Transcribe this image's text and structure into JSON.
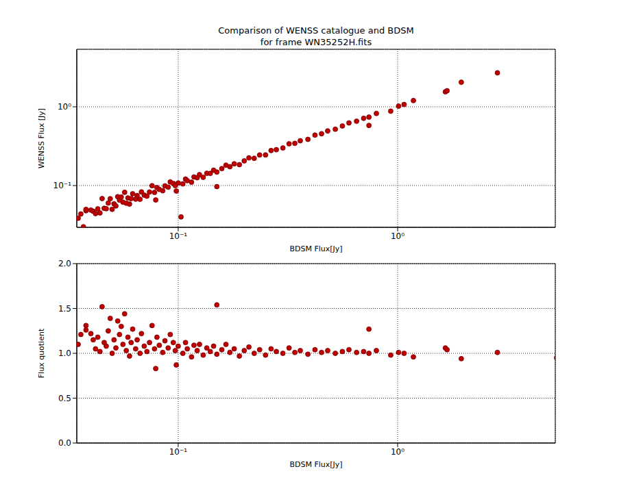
{
  "chart_data": [
    {
      "type": "scatter",
      "title": "Comparison of WENSS catalogue and BDSM\nfor frame WN35252H.fits",
      "x_label": "BDSM Flux[Jy]",
      "y_label": "WENSS Flux [Jy]",
      "log": true,
      "grid": true,
      "color": "#c00000",
      "marker": "circle",
      "xlim": [
        0.0345,
        5.23
      ],
      "ylim": [
        0.0295,
        5.37
      ],
      "xticks": [
        {
          "value": 0.1,
          "label": "10⁻¹"
        },
        {
          "value": 1,
          "label": "10⁰"
        }
      ],
      "yticks": [
        {
          "value": 0.1,
          "label": "10⁻¹"
        },
        {
          "value": 1,
          "label": "10⁰"
        }
      ],
      "x": [
        0.035,
        0.036,
        0.038,
        0.038,
        0.04,
        0.041,
        0.042,
        0.043,
        0.044,
        0.045,
        0.046,
        0.047,
        0.048,
        0.049,
        0.05,
        0.051,
        0.052,
        0.053,
        0.054,
        0.055,
        0.056,
        0.057,
        0.058,
        0.059,
        0.06,
        0.061,
        0.062,
        0.064,
        0.065,
        0.067,
        0.068,
        0.07,
        0.072,
        0.074,
        0.076,
        0.078,
        0.079,
        0.08,
        0.082,
        0.085,
        0.087,
        0.09,
        0.092,
        0.095,
        0.097,
        0.098,
        0.1,
        0.105,
        0.108,
        0.11,
        0.115,
        0.118,
        0.122,
        0.125,
        0.13,
        0.135,
        0.14,
        0.145,
        0.15,
        0.158,
        0.165,
        0.172,
        0.18,
        0.19,
        0.2,
        0.21,
        0.222,
        0.235,
        0.25,
        0.265,
        0.28,
        0.3,
        0.32,
        0.34,
        0.36,
        0.39,
        0.42,
        0.45,
        0.48,
        0.52,
        0.56,
        0.6,
        0.65,
        0.7,
        0.74,
        0.8,
        0.93,
        1.01,
        1.07,
        1.18,
        1.65,
        1.68,
        1.95,
        2.85,
        0.103,
        0.15,
        0.74,
        0.037
      ],
      "values": [
        0.0385,
        0.0436,
        0.0479,
        0.0498,
        0.0488,
        0.0472,
        0.0441,
        0.0507,
        0.0449,
        0.0684,
        0.0515,
        0.0508,
        0.06,
        0.0681,
        0.05,
        0.0587,
        0.0551,
        0.0721,
        0.0653,
        0.0715,
        0.0616,
        0.0821,
        0.0597,
        0.0696,
        0.0582,
        0.0683,
        0.0787,
        0.0672,
        0.0748,
        0.067,
        0.083,
        0.0756,
        0.0734,
        0.0829,
        0.0996,
        0.0819,
        0.0656,
        0.0944,
        0.0894,
        0.0859,
        0.0992,
        0.0954,
        0.1113,
        0.1064,
        0.0999,
        0.0853,
        0.108,
        0.105,
        0.121,
        0.1155,
        0.1104,
        0.1286,
        0.1257,
        0.1375,
        0.1274,
        0.1431,
        0.1428,
        0.1566,
        0.1485,
        0.1643,
        0.1815,
        0.1737,
        0.189,
        0.1843,
        0.206,
        0.2247,
        0.222,
        0.2444,
        0.245,
        0.2783,
        0.2856,
        0.3,
        0.3392,
        0.3434,
        0.3708,
        0.3861,
        0.4368,
        0.4545,
        0.4944,
        0.52,
        0.5712,
        0.624,
        0.6565,
        0.714,
        0.74,
        0.824,
        0.88,
        1.0201,
        1.07,
        1.2,
        1.55,
        1.6,
        2.05,
        2.7,
        0.04,
        0.097,
        0.58,
        0.03
      ]
    },
    {
      "type": "scatter",
      "x_label": "BDSM Flux[Jy]",
      "y_label": "Flux quotient",
      "log": "x",
      "grid": true,
      "color": "#c00000",
      "marker": "circle",
      "xlim": [
        0.0345,
        5.23
      ],
      "ylim": [
        0,
        2
      ],
      "xticks": [
        {
          "value": 0.1,
          "label": "10⁻¹"
        },
        {
          "value": 1,
          "label": "10⁰"
        }
      ],
      "yticks": [
        {
          "value": 0,
          "label": "0.0"
        },
        {
          "value": 0.5,
          "label": "0.5"
        },
        {
          "value": 1,
          "label": "1.0"
        },
        {
          "value": 1.5,
          "label": "1.5"
        },
        {
          "value": 2,
          "label": "2.0"
        }
      ],
      "x": [
        0.035,
        0.036,
        0.038,
        0.038,
        0.04,
        0.041,
        0.042,
        0.043,
        0.044,
        0.045,
        0.046,
        0.047,
        0.048,
        0.049,
        0.05,
        0.051,
        0.052,
        0.053,
        0.054,
        0.055,
        0.056,
        0.057,
        0.058,
        0.059,
        0.06,
        0.061,
        0.062,
        0.064,
        0.065,
        0.067,
        0.068,
        0.07,
        0.072,
        0.074,
        0.076,
        0.078,
        0.079,
        0.08,
        0.082,
        0.085,
        0.087,
        0.09,
        0.092,
        0.095,
        0.097,
        0.098,
        0.1,
        0.105,
        0.108,
        0.11,
        0.115,
        0.118,
        0.122,
        0.125,
        0.13,
        0.135,
        0.14,
        0.145,
        0.15,
        0.158,
        0.165,
        0.172,
        0.18,
        0.19,
        0.2,
        0.21,
        0.222,
        0.235,
        0.25,
        0.265,
        0.28,
        0.3,
        0.32,
        0.34,
        0.36,
        0.39,
        0.42,
        0.45,
        0.48,
        0.52,
        0.56,
        0.6,
        0.65,
        0.7,
        0.74,
        0.8,
        0.93,
        1.01,
        1.07,
        1.18,
        1.65,
        1.68,
        1.95,
        2.85,
        5.3,
        0.15,
        0.74
      ],
      "values": [
        1.1,
        1.21,
        1.26,
        1.31,
        1.22,
        1.15,
        1.05,
        1.18,
        1.02,
        1.52,
        1.12,
        1.08,
        1.25,
        1.39,
        1.0,
        1.15,
        1.06,
        1.36,
        1.21,
        1.3,
        1.1,
        1.44,
        1.03,
        1.18,
        0.97,
        1.12,
        1.27,
        1.05,
        1.15,
        1.0,
        1.22,
        1.08,
        1.02,
        1.12,
        1.31,
        1.05,
        0.83,
        1.18,
        1.09,
        1.01,
        1.14,
        1.06,
        1.21,
        1.12,
        1.03,
        0.87,
        1.08,
        1.0,
        1.12,
        1.05,
        0.96,
        1.09,
        1.03,
        1.1,
        0.98,
        1.06,
        1.02,
        1.08,
        0.99,
        1.04,
        1.1,
        1.01,
        1.05,
        0.97,
        1.03,
        1.07,
        1.0,
        1.04,
        0.98,
        1.05,
        1.02,
        1.0,
        1.06,
        1.01,
        1.03,
        0.99,
        1.04,
        1.01,
        1.03,
        1.0,
        1.02,
        1.04,
        1.01,
        1.02,
        1.0,
        1.03,
        0.98,
        1.01,
        1.0,
        0.96,
        1.06,
        1.04,
        0.94,
        1.01,
        0.95,
        1.54,
        1.27
      ]
    }
  ]
}
